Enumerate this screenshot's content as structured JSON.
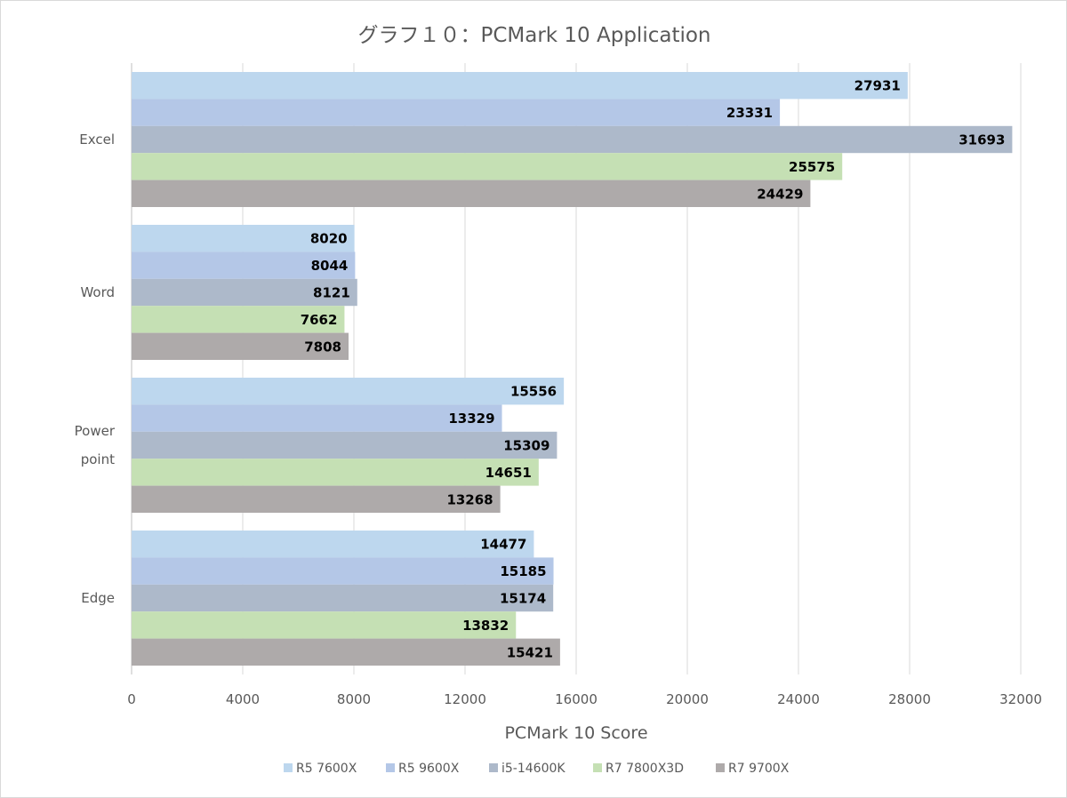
{
  "chart_data": {
    "type": "bar",
    "orientation": "horizontal",
    "title": "グラフ１０：PCMark 10 Application",
    "xlabel": "PCMark 10 Score",
    "ylabel": "",
    "xlim": [
      0,
      32000
    ],
    "xticks": [
      0,
      4000,
      8000,
      12000,
      16000,
      20000,
      24000,
      28000,
      32000
    ],
    "grid": true,
    "legend_position": "bottom",
    "categories": [
      {
        "lines": [
          "Excel"
        ]
      },
      {
        "lines": [
          "Word"
        ]
      },
      {
        "lines": [
          "Power",
          "point"
        ]
      },
      {
        "lines": [
          "Edge"
        ]
      }
    ],
    "series": [
      {
        "name": "R5 7600X",
        "color": "#bdd7ee",
        "values": [
          27931,
          8020,
          15556,
          14477
        ]
      },
      {
        "name": "R5 9600X",
        "color": "#b4c7e7",
        "values": [
          23331,
          8044,
          13329,
          15185
        ]
      },
      {
        "name": "i5-14600K",
        "color": "#adb9ca",
        "values": [
          31693,
          8121,
          15309,
          15174
        ]
      },
      {
        "name": "R7 7800X3D",
        "color": "#c5e0b4",
        "values": [
          25575,
          7662,
          14651,
          13832
        ]
      },
      {
        "name": "R7 9700X",
        "color": "#aeaaaa",
        "values": [
          24429,
          7808,
          13268,
          15421
        ]
      }
    ]
  }
}
